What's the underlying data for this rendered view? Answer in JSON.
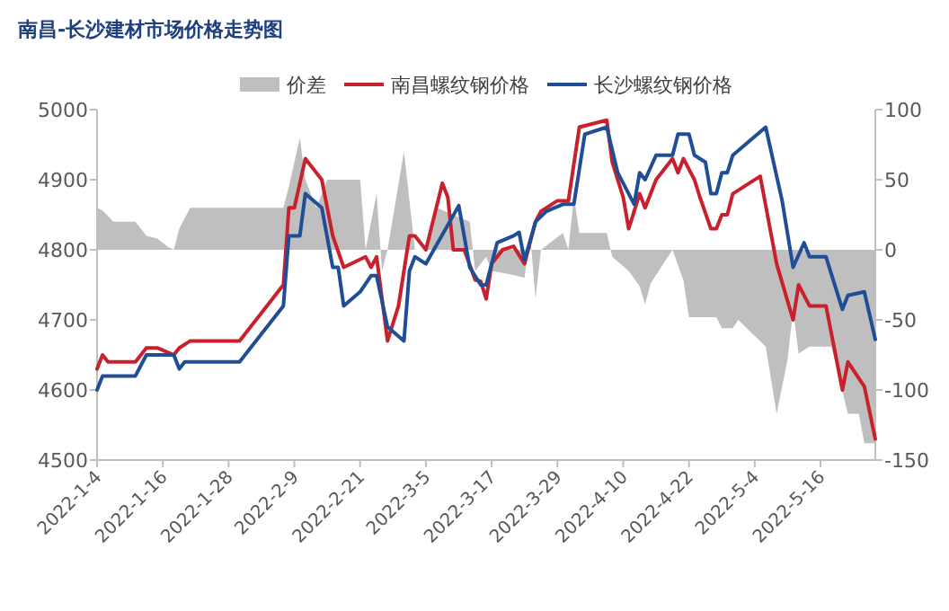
{
  "chart_data": {
    "type": "line",
    "title": "南昌-长沙建材市场价格走势图",
    "legend": "top",
    "line_style": "solid",
    "xlim": [
      "2022-01-04",
      "2022-05-26"
    ],
    "xticks": [
      {
        "value": "2022-01-04",
        "label": "2022-1-4"
      },
      {
        "value": "2022-01-16",
        "label": "2022-1-16"
      },
      {
        "value": "2022-01-28",
        "label": "2022-1-28"
      },
      {
        "value": "2022-02-09",
        "label": "2022-2-9"
      },
      {
        "value": "2022-02-21",
        "label": "2022-2-21"
      },
      {
        "value": "2022-03-05",
        "label": "2022-3-5"
      },
      {
        "value": "2022-03-17",
        "label": "2022-3-17"
      },
      {
        "value": "2022-03-29",
        "label": "2022-3-29"
      },
      {
        "value": "2022-04-10",
        "label": "2022-4-10"
      },
      {
        "value": "2022-04-22",
        "label": "2022-4-22"
      },
      {
        "value": "2022-05-04",
        "label": "2022-5-4"
      },
      {
        "value": "2022-05-16",
        "label": "2022-5-16"
      }
    ],
    "ylim": [
      4500,
      5000
    ],
    "yticks": [
      4500,
      4600,
      4700,
      4800,
      4900,
      5000
    ],
    "y2lim": [
      -150,
      100
    ],
    "y2ticks": [
      -150,
      -100,
      -50,
      0,
      50,
      100
    ],
    "series": [
      {
        "name": "价差",
        "type": "area",
        "axis": "y2",
        "color": "#bfbfbf",
        "x": [
          "2022-01-04",
          "2022-01-05",
          "2022-01-07",
          "2022-01-11",
          "2022-01-13",
          "2022-01-15",
          "2022-01-17",
          "2022-01-18",
          "2022-01-19",
          "2022-01-21",
          "2022-02-07",
          "2022-02-08",
          "2022-02-10",
          "2022-02-11",
          "2022-02-13",
          "2022-02-15",
          "2022-02-21",
          "2022-02-22",
          "2022-02-24",
          "2022-02-25",
          "2022-02-26",
          "2022-03-01",
          "2022-03-03",
          "2022-03-05",
          "2022-03-07",
          "2022-03-13",
          "2022-03-14",
          "2022-03-16",
          "2022-03-17",
          "2022-03-21",
          "2022-03-23",
          "2022-03-24",
          "2022-03-25",
          "2022-03-26",
          "2022-03-30",
          "2022-03-31",
          "2022-04-01",
          "2022-04-02",
          "2022-04-07",
          "2022-04-08",
          "2022-04-11",
          "2022-04-13",
          "2022-04-14",
          "2022-04-15",
          "2022-04-16",
          "2022-04-19",
          "2022-04-21",
          "2022-04-22",
          "2022-04-27",
          "2022-04-28",
          "2022-04-30",
          "2022-05-01",
          "2022-05-06",
          "2022-05-08",
          "2022-05-10",
          "2022-05-11",
          "2022-05-12",
          "2022-05-14",
          "2022-05-18",
          "2022-05-21",
          "2022-05-23",
          "2022-05-24",
          "2022-05-26"
        ],
        "values": [
          30,
          28,
          20,
          20,
          10,
          8,
          2,
          0,
          15,
          30,
          30,
          45,
          80,
          50,
          30,
          50,
          50,
          0,
          40,
          -15,
          0,
          70,
          0,
          0,
          30,
          20,
          -15,
          -5,
          -15,
          -18,
          -20,
          12,
          -35,
          0,
          12,
          0,
          38,
          12,
          12,
          -5,
          -15,
          -26,
          -39,
          -24,
          -18,
          0,
          -22,
          -48,
          -48,
          -56,
          -56,
          -50,
          -69,
          -117,
          -78,
          -43,
          -74,
          -69,
          -69,
          -117,
          -117,
          -138,
          -138
        ]
      },
      {
        "name": "南昌螺纹钢价格",
        "color": "#c8202c",
        "x": [
          "2022-01-04",
          "2022-01-05",
          "2022-01-06",
          "2022-01-11",
          "2022-01-13",
          "2022-01-15",
          "2022-01-18",
          "2022-01-19",
          "2022-01-21",
          "2022-01-30",
          "2022-02-07",
          "2022-02-08",
          "2022-02-09",
          "2022-02-11",
          "2022-02-14",
          "2022-02-16",
          "2022-02-18",
          "2022-02-22",
          "2022-02-23",
          "2022-02-24",
          "2022-02-26",
          "2022-02-28",
          "2022-03-02",
          "2022-03-03",
          "2022-03-05",
          "2022-03-08",
          "2022-03-09",
          "2022-03-10",
          "2022-03-12",
          "2022-03-14",
          "2022-03-15",
          "2022-03-16",
          "2022-03-17",
          "2022-03-19",
          "2022-03-21",
          "2022-03-23",
          "2022-03-25",
          "2022-03-26",
          "2022-03-29",
          "2022-03-31",
          "2022-04-02",
          "2022-04-07",
          "2022-04-08",
          "2022-04-10",
          "2022-04-11",
          "2022-04-13",
          "2022-04-14",
          "2022-04-16",
          "2022-04-19",
          "2022-04-20",
          "2022-04-21",
          "2022-04-23",
          "2022-04-24",
          "2022-04-26",
          "2022-04-27",
          "2022-04-28",
          "2022-04-29",
          "2022-04-30",
          "2022-05-05",
          "2022-05-08",
          "2022-05-11",
          "2022-05-12",
          "2022-05-14",
          "2022-05-17",
          "2022-05-20",
          "2022-05-21",
          "2022-05-24",
          "2022-05-26"
        ],
        "values": [
          4630,
          4650,
          4640,
          4640,
          4660,
          4660,
          4650,
          4660,
          4670,
          4670,
          4750,
          4860,
          4860,
          4930,
          4900,
          4820,
          4775,
          4790,
          4775,
          4790,
          4670,
          4720,
          4820,
          4820,
          4800,
          4895,
          4875,
          4800,
          4800,
          4757,
          4755,
          4730,
          4780,
          4800,
          4805,
          4780,
          4840,
          4855,
          4870,
          4870,
          4975,
          4985,
          4925,
          4875,
          4830,
          4880,
          4860,
          4900,
          4930,
          4910,
          4930,
          4900,
          4875,
          4830,
          4830,
          4850,
          4850,
          4880,
          4905,
          4780,
          4700,
          4750,
          4720,
          4720,
          4600,
          4640,
          4605,
          4530
        ]
      },
      {
        "name": "长沙螺纹钢价格",
        "color": "#1f4e96",
        "x": [
          "2022-01-04",
          "2022-01-05",
          "2022-01-11",
          "2022-01-13",
          "2022-01-18",
          "2022-01-19",
          "2022-01-20",
          "2022-01-30",
          "2022-02-07",
          "2022-02-08",
          "2022-02-10",
          "2022-02-11",
          "2022-02-14",
          "2022-02-16",
          "2022-02-17",
          "2022-02-18",
          "2022-02-21",
          "2022-02-23",
          "2022-02-24",
          "2022-02-26",
          "2022-03-01",
          "2022-03-02",
          "2022-03-03",
          "2022-03-05",
          "2022-03-11",
          "2022-03-13",
          "2022-03-15",
          "2022-03-16",
          "2022-03-18",
          "2022-03-21",
          "2022-03-22",
          "2022-03-23",
          "2022-03-25",
          "2022-03-27",
          "2022-03-30",
          "2022-04-01",
          "2022-04-03",
          "2022-04-07",
          "2022-04-09",
          "2022-04-12",
          "2022-04-13",
          "2022-04-14",
          "2022-04-16",
          "2022-04-19",
          "2022-04-20",
          "2022-04-22",
          "2022-04-23",
          "2022-04-25",
          "2022-04-26",
          "2022-04-27",
          "2022-04-28",
          "2022-04-29",
          "2022-04-30",
          "2022-05-06",
          "2022-05-09",
          "2022-05-11",
          "2022-05-13",
          "2022-05-14",
          "2022-05-17",
          "2022-05-20",
          "2022-05-21",
          "2022-05-24",
          "2022-05-26"
        ],
        "values": [
          4600,
          4620,
          4620,
          4650,
          4650,
          4630,
          4640,
          4640,
          4720,
          4820,
          4820,
          4880,
          4860,
          4775,
          4775,
          4720,
          4740,
          4763,
          4763,
          4690,
          4670,
          4770,
          4790,
          4780,
          4863,
          4775,
          4750,
          4750,
          4810,
          4820,
          4825,
          4785,
          4840,
          4855,
          4865,
          4865,
          4965,
          4975,
          4910,
          4865,
          4910,
          4900,
          4935,
          4935,
          4965,
          4965,
          4935,
          4925,
          4880,
          4880,
          4910,
          4910,
          4935,
          4975,
          4870,
          4775,
          4810,
          4790,
          4790,
          4715,
          4735,
          4740,
          4672
        ]
      }
    ]
  }
}
